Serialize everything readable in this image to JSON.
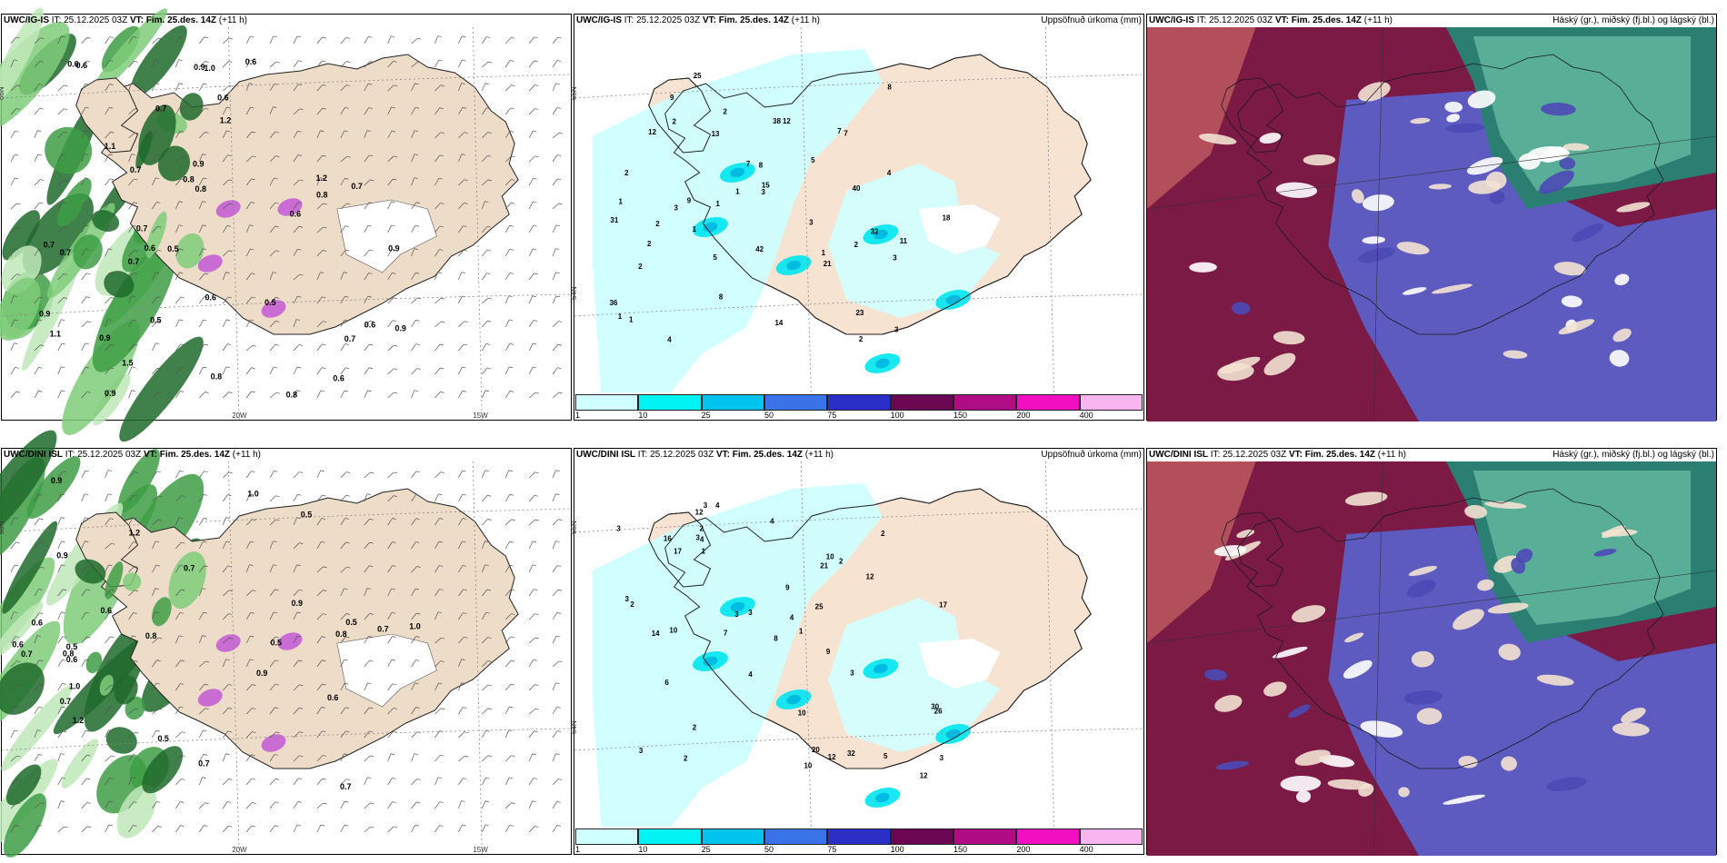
{
  "rows": [
    {
      "model": "UWC/IG-IS",
      "panels": [
        {
          "type": "wind",
          "model": "UWC/IG-IS",
          "it": "IT: 25.12.2025 03Z",
          "vt": "VT: Fim. 25.des. 14Z",
          "lead": "(+11 h)",
          "title_right": "",
          "labels": [
            "0.7",
            "0.6",
            "0.5",
            "0.6",
            "0.9",
            "1.1",
            "0.7",
            "0.7",
            "0.6",
            "0.8",
            "0.9",
            "1.2",
            "0.9",
            "0.7",
            "0.6",
            "0.7",
            "0.8",
            "0.9",
            "1.2",
            "0.9",
            "0.6",
            "0.7",
            "0.8",
            "0.5",
            "0.6",
            "0.9",
            "0.9",
            "0.8",
            "0.7",
            "0.8",
            "0.6",
            "1.0",
            "1.5",
            "1.1",
            "0.6",
            "0.7",
            "0.5",
            "0.6"
          ]
        },
        {
          "type": "precip",
          "model": "UWC/IG-IS",
          "it": "IT: 25.12.2025 03Z",
          "vt": "VT: Fim. 25.des. 14Z",
          "lead": "(+11 h)",
          "title_right": "Uppsöfnuð úrkoma (mm)",
          "labels": [
            "3",
            "1",
            "12",
            "3",
            "2",
            "1",
            "8",
            "5",
            "2",
            "1",
            "1",
            "12",
            "13",
            "3",
            "2",
            "15",
            "25",
            "23",
            "4",
            "7",
            "8",
            "40",
            "42",
            "7",
            "14",
            "11",
            "21",
            "38",
            "9",
            "36",
            "31",
            "18",
            "4",
            "8",
            "2",
            "3",
            "1",
            "2",
            "2",
            "1",
            "7",
            "1",
            "5",
            "32",
            "9",
            "3",
            "2",
            "2"
          ]
        },
        {
          "type": "cloud",
          "model": "UWC/IG-IS",
          "it": "IT: 25.12.2025 03Z",
          "vt": "VT: Fim. 25.des. 14Z",
          "lead": "(+11 h)",
          "title_right": "Háský (gr.), miðský (fj.bl.) og lágský (bl.)",
          "labels": []
        }
      ]
    },
    {
      "model": "UWC/DINI ISL",
      "panels": [
        {
          "type": "wind",
          "model": "UWC/DINI ISL",
          "it": "IT: 25.12.2025 03Z",
          "vt": "VT: Fim. 25.des. 14Z",
          "lead": "(+11 h)",
          "title_right": "",
          "labels": [
            "0.7",
            "0.8",
            "0.5",
            "1.0",
            "0.7",
            "1.2",
            "0.5",
            "1.0",
            "0.9",
            "1.2",
            "0.7",
            "0.5",
            "0.9",
            "0.8",
            "1.0",
            "0.7",
            "0.6",
            "0.7",
            "0.9",
            "0.5",
            "0.7",
            "0.6",
            "0.5",
            "0.6",
            "0.8",
            "0.6",
            "0.9",
            "0.6"
          ]
        },
        {
          "type": "precip",
          "model": "UWC/DINI ISL",
          "it": "IT: 25.12.2025 03Z",
          "vt": "VT: Fim. 25.des. 14Z",
          "lead": "(+11 h)",
          "title_right": "Uppsöfnuð úrkoma (mm)",
          "labels": [
            "2",
            "2",
            "3",
            "12",
            "2",
            "4",
            "3",
            "2",
            "8",
            "10",
            "3",
            "4",
            "12",
            "3",
            "2",
            "9",
            "1",
            "20",
            "17",
            "3",
            "4",
            "30",
            "10",
            "16",
            "12",
            "17",
            "21",
            "10",
            "25",
            "26",
            "14",
            "3",
            "4",
            "2",
            "3",
            "1",
            "7",
            "12",
            "9",
            "3",
            "10",
            "32",
            "6",
            "5",
            "4",
            "3"
          ]
        },
        {
          "type": "cloud",
          "model": "UWC/DINI ISL",
          "it": "IT: 25.12.2025 03Z",
          "vt": "VT: Fim. 25.des. 14Z",
          "lead": "(+11 h)",
          "title_right": "Háský (gr.), miðský (fj.bl.) og lágský (bl.)",
          "labels": []
        }
      ]
    }
  ],
  "axis": {
    "lat_left": "66N",
    "lat_right": "64N",
    "lon_a": "20W",
    "lon_b": "15W"
  },
  "legend": {
    "colors": [
      "#cfffff",
      "#00f2f2",
      "#00c3ee",
      "#3a72e8",
      "#2b2fc8",
      "#6b0652",
      "#b00c86",
      "#f20fc2",
      "#f9b5ef"
    ],
    "labels": [
      "1",
      "10",
      "25",
      "50",
      "75",
      "100",
      "150",
      "200",
      "400"
    ]
  }
}
